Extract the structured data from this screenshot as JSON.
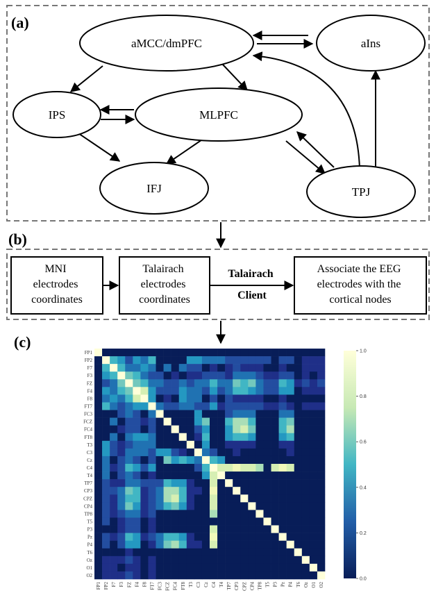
{
  "panels": {
    "a": "(a)",
    "b": "(b)",
    "c": "(c)"
  },
  "network": {
    "nodes": [
      {
        "id": "amcc",
        "label": "aMCC/dmPFC"
      },
      {
        "id": "ains",
        "label": "aIns"
      },
      {
        "id": "ips",
        "label": "IPS"
      },
      {
        "id": "mlpfc",
        "label": "MLPFC"
      },
      {
        "id": "ifj",
        "label": "IFJ"
      },
      {
        "id": "tpj",
        "label": "TPJ"
      }
    ]
  },
  "pipeline": {
    "step1": [
      "MNI",
      "electrodes",
      "coordinates"
    ],
    "step2": [
      "Talairach",
      "electrodes",
      "coordinates"
    ],
    "client": [
      "Talairach",
      "Client"
    ],
    "step3": [
      "Associate the EEG",
      "electrodes with the",
      "cortical nodes"
    ]
  },
  "chart_data": {
    "type": "heatmap",
    "labels": [
      "FP1",
      "FP2",
      "F7",
      "F3",
      "FZ",
      "F4",
      "F8",
      "FT7",
      "FC3",
      "FCZ",
      "FC4",
      "FT8",
      "T3",
      "C3",
      "Cz",
      "C4",
      "T4",
      "TP7",
      "CP3",
      "CPZ",
      "CP4",
      "TP8",
      "T5",
      "P3",
      "Pz",
      "P4",
      "T6",
      "Oz",
      "O1",
      "O2"
    ],
    "colorbar": {
      "min": 0.0,
      "max": 1.0,
      "ticks": [
        "0.0",
        "0.2",
        "0.4",
        "0.6",
        "0.8",
        "1.0"
      ]
    },
    "colors": {
      "low": "#081d58",
      "mid": "#41b6c4",
      "high": "#ffffd9"
    },
    "matrix": [
      [
        1,
        0,
        0,
        0,
        0,
        0,
        0,
        0,
        0,
        0,
        0,
        0,
        0,
        0,
        0,
        0,
        0,
        0,
        0,
        0,
        0,
        0,
        0,
        0,
        0,
        0,
        0,
        0,
        0,
        0
      ],
      [
        0,
        1,
        0.5,
        0.4,
        0.2,
        0.4,
        0.3,
        0.5,
        0,
        0,
        0,
        0,
        0.4,
        0.4,
        0.3,
        0.3,
        0.3,
        0.2,
        0.2,
        0.2,
        0.2,
        0.2,
        0.2,
        0,
        0.2,
        0.2,
        0,
        0.1,
        0.1,
        0.1
      ],
      [
        0,
        0.5,
        1,
        0.5,
        0.3,
        0.3,
        0.4,
        0.3,
        0,
        0.3,
        0,
        0.3,
        0.2,
        0.2,
        0,
        0.1,
        0,
        0.1,
        0.2,
        0.1,
        0.1,
        0.1,
        0,
        0,
        0.1,
        0,
        0,
        0.1,
        0.1,
        0.1
      ],
      [
        0,
        0.4,
        0.5,
        1,
        0.6,
        0.5,
        0.3,
        0.2,
        0.2,
        0,
        0.1,
        0,
        0.1,
        0.1,
        0.2,
        0.2,
        0.2,
        0.1,
        0.3,
        0.3,
        0.3,
        0.2,
        0.1,
        0.1,
        0.2,
        0.2,
        0,
        0.1,
        0,
        0.1
      ],
      [
        0,
        0.2,
        0.3,
        0.6,
        1,
        0.6,
        0.5,
        0.3,
        0.3,
        0.2,
        0.2,
        0.3,
        0.2,
        0.3,
        0.3,
        0.5,
        0.3,
        0.3,
        0.6,
        0.5,
        0.6,
        0.3,
        0.2,
        0.2,
        0.5,
        0.4,
        0.1,
        0.2,
        0.1,
        0.2
      ],
      [
        0,
        0.4,
        0.3,
        0.5,
        0.6,
        1,
        0.8,
        0.4,
        0.2,
        0.2,
        0.2,
        0.4,
        0.3,
        0.3,
        0.2,
        0.4,
        0.2,
        0.3,
        0.5,
        0.5,
        0.4,
        0.3,
        0.2,
        0.2,
        0.4,
        0.4,
        0,
        0.1,
        0.1,
        0.1
      ],
      [
        0,
        0.3,
        0.4,
        0.3,
        0.5,
        0.8,
        1,
        0.4,
        0,
        0.1,
        0,
        0.4,
        0.3,
        0.3,
        0,
        0.2,
        0,
        0.2,
        0.1,
        0.1,
        0.1,
        0.1,
        0,
        0,
        0.1,
        0,
        0,
        0,
        0,
        0
      ],
      [
        0,
        0.5,
        0.3,
        0.2,
        0.3,
        0.4,
        0.4,
        1,
        0.3,
        0.2,
        0.2,
        0.3,
        0.3,
        0.2,
        0.2,
        0.4,
        0.1,
        0.2,
        0.2,
        0.2,
        0.2,
        0.2,
        0.1,
        0.1,
        0.2,
        0.1,
        0,
        0.1,
        0.1,
        0.1
      ],
      [
        0,
        0,
        0,
        0.2,
        0.3,
        0.2,
        0,
        0.3,
        1,
        0,
        0,
        0,
        0,
        0.4,
        0,
        0,
        0,
        0.2,
        0.3,
        0.3,
        0.3,
        0,
        0,
        0,
        0.3,
        0.3,
        0,
        0,
        0,
        0
      ],
      [
        0,
        0,
        0.3,
        0,
        0.2,
        0.2,
        0.1,
        0.2,
        0,
        1,
        0,
        0,
        0,
        0.4,
        0.6,
        0,
        0,
        0.5,
        0.7,
        0.7,
        0.5,
        0,
        0,
        0,
        0.5,
        0.6,
        0,
        0,
        0,
        0
      ],
      [
        0,
        0,
        0,
        0.1,
        0.2,
        0.2,
        0,
        0.2,
        0,
        0,
        1,
        0,
        0,
        0.2,
        0.4,
        0,
        0,
        0.4,
        0.7,
        0.8,
        0.6,
        0,
        0,
        0,
        0.5,
        0.7,
        0,
        0,
        0,
        0
      ],
      [
        0,
        0,
        0.3,
        0,
        0.3,
        0.4,
        0.4,
        0.3,
        0,
        0,
        0,
        1,
        0,
        0.1,
        0.5,
        0,
        0,
        0.4,
        0.5,
        0.5,
        0.4,
        0,
        0,
        0,
        0.4,
        0.5,
        0,
        0,
        0,
        0
      ],
      [
        0,
        0.4,
        0.2,
        0.1,
        0.2,
        0.3,
        0.3,
        0.3,
        0,
        0,
        0,
        0,
        1,
        0,
        0.4,
        0,
        0,
        0.1,
        0.1,
        0.1,
        0.1,
        0,
        0,
        0,
        0.1,
        0.1,
        0,
        0,
        0,
        0
      ],
      [
        0,
        0.4,
        0.2,
        0.1,
        0.3,
        0.3,
        0.3,
        0.2,
        0.4,
        0.4,
        0.2,
        0.1,
        0,
        1,
        0.3,
        0.2,
        0,
        0,
        0.1,
        0,
        0,
        0,
        0,
        0,
        0,
        0.1,
        0,
        0,
        0,
        0
      ],
      [
        0,
        0.3,
        0,
        0.2,
        0.3,
        0.2,
        0,
        0.2,
        0,
        0.6,
        0.4,
        0.5,
        0.4,
        0.3,
        1,
        0.5,
        0.4,
        0,
        0,
        0,
        0,
        0,
        0,
        0,
        0,
        0,
        0,
        0,
        0,
        0
      ],
      [
        0,
        0.3,
        0.1,
        0.2,
        0.5,
        0.4,
        0.2,
        0.4,
        0,
        0,
        0,
        0,
        0,
        0.2,
        0.5,
        1,
        0.8,
        0.8,
        0.9,
        0.8,
        0.8,
        0.7,
        0,
        0.8,
        0.9,
        0.8,
        0,
        0,
        0,
        0
      ],
      [
        0,
        0.3,
        0,
        0.2,
        0.3,
        0.2,
        0,
        0.1,
        0,
        0,
        0,
        0,
        0,
        0,
        0.4,
        0.8,
        1,
        0,
        0,
        0,
        0,
        0,
        0,
        0,
        0,
        0,
        0,
        0,
        0,
        0
      ],
      [
        0,
        0.2,
        0.1,
        0.1,
        0.3,
        0.3,
        0.2,
        0.2,
        0.2,
        0.5,
        0.4,
        0.4,
        0.1,
        0,
        0,
        0.8,
        0,
        1,
        0,
        0,
        0,
        0,
        0,
        0,
        0,
        0,
        0,
        0,
        0,
        0
      ],
      [
        0,
        0.2,
        0.2,
        0.3,
        0.6,
        0.5,
        0.1,
        0.2,
        0.3,
        0.7,
        0.7,
        0.5,
        0.1,
        0.1,
        0,
        0.9,
        0,
        0,
        1,
        0,
        0,
        0,
        0,
        0,
        0,
        0,
        0,
        0,
        0,
        0
      ],
      [
        0,
        0.2,
        0.1,
        0.3,
        0.5,
        0.5,
        0.1,
        0.2,
        0.3,
        0.7,
        0.8,
        0.5,
        0.1,
        0,
        0,
        0.8,
        0,
        0,
        0,
        1,
        0,
        0,
        0,
        0,
        0,
        0,
        0,
        0,
        0,
        0
      ],
      [
        0,
        0.2,
        0.1,
        0.3,
        0.6,
        0.4,
        0.1,
        0.2,
        0.3,
        0.5,
        0.6,
        0.4,
        0.1,
        0,
        0,
        0.8,
        0,
        0,
        0,
        0,
        1,
        0,
        0,
        0,
        0,
        0,
        0,
        0,
        0,
        0
      ],
      [
        0,
        0.2,
        0.1,
        0.2,
        0.3,
        0.3,
        0.1,
        0.2,
        0,
        0,
        0,
        0,
        0,
        0,
        0,
        0.7,
        0,
        0,
        0,
        0,
        0,
        1,
        0,
        0,
        0,
        0,
        0,
        0,
        0,
        0
      ],
      [
        0,
        0.2,
        0,
        0.1,
        0.2,
        0.2,
        0,
        0.1,
        0,
        0,
        0,
        0,
        0,
        0,
        0,
        0,
        0,
        0,
        0,
        0,
        0,
        0,
        1,
        0,
        0,
        0,
        0,
        0,
        0,
        0
      ],
      [
        0,
        0,
        0,
        0.1,
        0.2,
        0.2,
        0,
        0.1,
        0,
        0,
        0,
        0,
        0,
        0,
        0,
        0.8,
        0,
        0,
        0,
        0,
        0,
        0,
        0,
        1,
        0,
        0,
        0,
        0,
        0,
        0
      ],
      [
        0,
        0.2,
        0.1,
        0.2,
        0.5,
        0.4,
        0.1,
        0.2,
        0.3,
        0.5,
        0.5,
        0.4,
        0.1,
        0,
        0,
        0.9,
        0,
        0,
        0,
        0,
        0,
        0,
        0,
        0,
        1,
        0,
        0,
        0,
        0,
        0
      ],
      [
        0,
        0.2,
        0,
        0.2,
        0.4,
        0.4,
        0,
        0.1,
        0.3,
        0.6,
        0.7,
        0.5,
        0.1,
        0.1,
        0,
        0.8,
        0,
        0,
        0,
        0,
        0,
        0,
        0,
        0,
        0,
        1,
        0,
        0,
        0,
        0
      ],
      [
        0,
        0,
        0,
        0,
        0.1,
        0,
        0,
        0,
        0,
        0,
        0,
        0,
        0,
        0,
        0,
        0,
        0,
        0,
        0,
        0,
        0,
        0,
        0,
        0,
        0,
        0,
        1,
        0,
        0,
        0
      ],
      [
        0,
        0.1,
        0.1,
        0.1,
        0.2,
        0.1,
        0,
        0.1,
        0,
        0,
        0,
        0,
        0,
        0,
        0,
        0,
        0,
        0,
        0,
        0,
        0,
        0,
        0,
        0,
        0,
        0,
        0,
        1,
        0,
        0
      ],
      [
        0,
        0.1,
        0.1,
        0,
        0.1,
        0.1,
        0,
        0.1,
        0,
        0,
        0,
        0,
        0,
        0,
        0,
        0,
        0,
        0,
        0,
        0,
        0,
        0,
        0,
        0,
        0,
        0,
        0,
        0,
        1,
        0
      ],
      [
        0,
        0.1,
        0.1,
        0.1,
        0.2,
        0.1,
        0,
        0.1,
        0,
        0,
        0,
        0,
        0,
        0,
        0,
        0,
        0,
        0,
        0,
        0,
        0,
        0,
        0,
        0,
        0,
        0,
        0,
        0,
        0,
        1
      ]
    ]
  }
}
